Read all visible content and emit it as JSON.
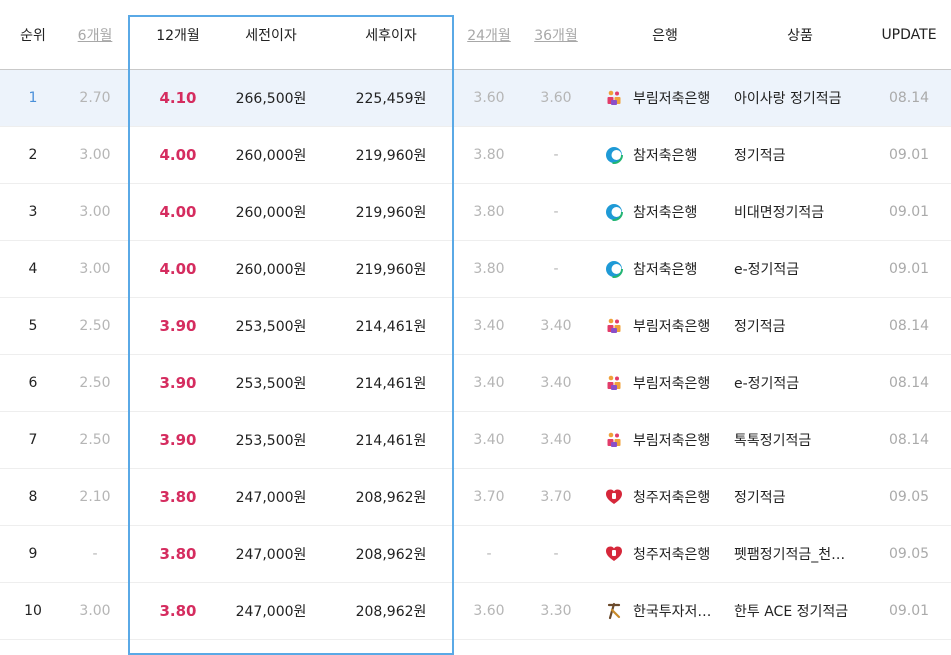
{
  "header": {
    "rank": "순위",
    "m6": "6개월",
    "m12": "12개월",
    "pretax": "세전이자",
    "posttax": "세후이자",
    "m24": "24개월",
    "m36": "36개월",
    "bank": "은행",
    "product": "상품",
    "update": "UPDATE"
  },
  "rows": [
    {
      "rank": "1",
      "m6": "2.70",
      "m12": "4.10",
      "pretax": "266,500원",
      "posttax": "225,459원",
      "m24": "3.60",
      "m36": "3.60",
      "bank": "부림저축은행",
      "product": "아이사랑 정기적금",
      "update": "08.14",
      "logo": "burim-logo-icon"
    },
    {
      "rank": "2",
      "m6": "3.00",
      "m12": "4.00",
      "pretax": "260,000원",
      "posttax": "219,960원",
      "m24": "3.80",
      "m36": "-",
      "bank": "참저축은행",
      "product": "정기적금",
      "update": "09.01",
      "logo": "cham-logo-icon"
    },
    {
      "rank": "3",
      "m6": "3.00",
      "m12": "4.00",
      "pretax": "260,000원",
      "posttax": "219,960원",
      "m24": "3.80",
      "m36": "-",
      "bank": "참저축은행",
      "product": "비대면정기적금",
      "update": "09.01",
      "logo": "cham-logo-icon"
    },
    {
      "rank": "4",
      "m6": "3.00",
      "m12": "4.00",
      "pretax": "260,000원",
      "posttax": "219,960원",
      "m24": "3.80",
      "m36": "-",
      "bank": "참저축은행",
      "product": "e-정기적금",
      "update": "09.01",
      "logo": "cham-logo-icon"
    },
    {
      "rank": "5",
      "m6": "2.50",
      "m12": "3.90",
      "pretax": "253,500원",
      "posttax": "214,461원",
      "m24": "3.40",
      "m36": "3.40",
      "bank": "부림저축은행",
      "product": "정기적금",
      "update": "08.14",
      "logo": "burim-logo-icon"
    },
    {
      "rank": "6",
      "m6": "2.50",
      "m12": "3.90",
      "pretax": "253,500원",
      "posttax": "214,461원",
      "m24": "3.40",
      "m36": "3.40",
      "bank": "부림저축은행",
      "product": "e-정기적금",
      "update": "08.14",
      "logo": "burim-logo-icon"
    },
    {
      "rank": "7",
      "m6": "2.50",
      "m12": "3.90",
      "pretax": "253,500원",
      "posttax": "214,461원",
      "m24": "3.40",
      "m36": "3.40",
      "bank": "부림저축은행",
      "product": "톡톡정기적금",
      "update": "08.14",
      "logo": "burim-logo-icon"
    },
    {
      "rank": "8",
      "m6": "2.10",
      "m12": "3.80",
      "pretax": "247,000원",
      "posttax": "208,962원",
      "m24": "3.70",
      "m36": "3.70",
      "bank": "청주저축은행",
      "product": "정기적금",
      "update": "09.05",
      "logo": "cheongju-logo-icon"
    },
    {
      "rank": "9",
      "m6": "-",
      "m12": "3.80",
      "pretax": "247,000원",
      "posttax": "208,962원",
      "m24": "-",
      "m36": "-",
      "bank": "청주저축은행",
      "product": "펫팸정기적금_천…",
      "update": "09.05",
      "logo": "cheongju-logo-icon"
    },
    {
      "rank": "10",
      "m6": "3.00",
      "m12": "3.80",
      "pretax": "247,000원",
      "posttax": "208,962원",
      "m24": "3.60",
      "m36": "3.30",
      "bank": "한국투자저…",
      "product": "한투 ACE 정기적금",
      "update": "09.01",
      "logo": "korea-investment-logo-icon"
    }
  ],
  "colors": {
    "rate_highlight": "#d52c5f",
    "column_frame": "#5aa9e6",
    "first_row_bg": "#edf3fb",
    "rank_first": "#4a90d9"
  }
}
